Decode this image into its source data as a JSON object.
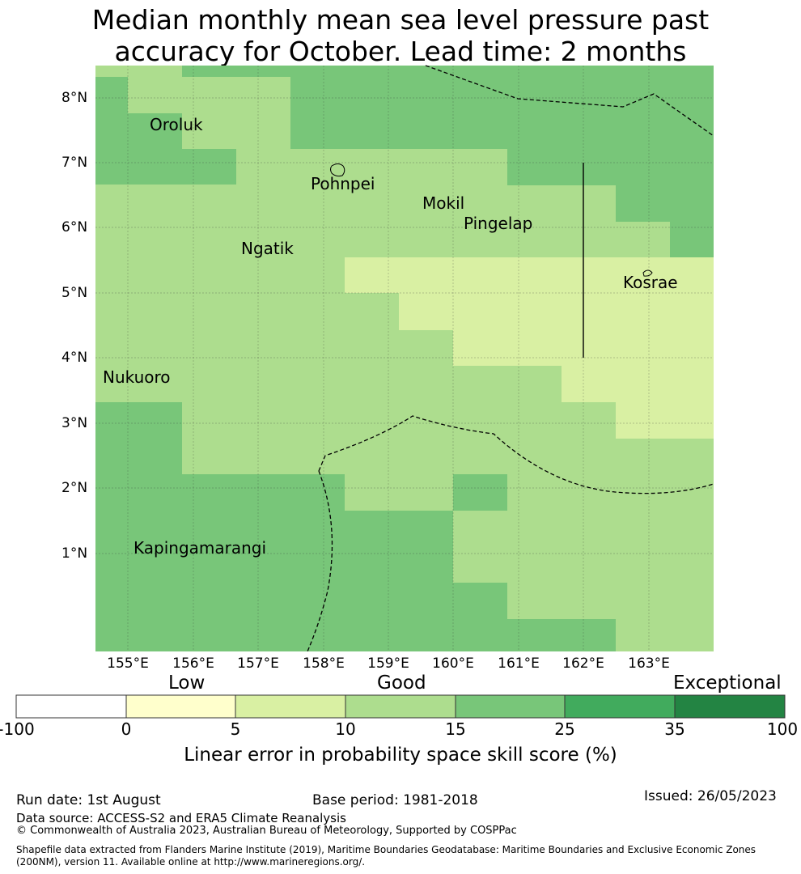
{
  "title": {
    "line1": "Median monthly mean sea level pressure past",
    "line2": "accuracy for October. Lead time: 2 months"
  },
  "y_ticks": [
    "8°N",
    "7°N",
    "6°N",
    "5°N",
    "4°N",
    "3°N",
    "2°N",
    "1°N"
  ],
  "x_ticks": [
    "155°E",
    "156°E",
    "157°E",
    "158°E",
    "159°E",
    "160°E",
    "161°E",
    "162°E",
    "163°E"
  ],
  "places": [
    "Oroluk",
    "Pohnpei",
    "Mokil",
    "Pingelap",
    "Ngatik",
    "Kosrae",
    "Nukuoro",
    "Kapingamarangi"
  ],
  "categories": [
    "Low",
    "Good",
    "Exceptional"
  ],
  "colorbar": {
    "ticks": [
      "-100",
      "0",
      "5",
      "10",
      "15",
      "25",
      "35",
      "100"
    ],
    "colors": [
      "#ffffff",
      "#ffffcc",
      "#d9f0a3",
      "#addd8e",
      "#78c679",
      "#41ab5d",
      "#238443"
    ],
    "label": "Linear error in probability space skill score (%)"
  },
  "footer": {
    "run_date": "Run date: 1st August",
    "base_period": "Base period: 1981-2018",
    "issued": "Issued: 26/05/2023",
    "data_source": "Data source: ACCESS-S2 and ERA5 Climate Reanalysis",
    "copyright": "© Commonwealth of Australia 2023, Australian Bureau of Meteorology, Supported by COSPPac",
    "shapefile_line1": "Shapefile data extracted from Flanders Marine Institute (2019), Maritime Boundaries Geodatabase: Maritime Boundaries and Exclusive Economic Zones",
    "shapefile_line2": "(200NM), version 11. Available online at http://www.marineregions.org/."
  }
}
